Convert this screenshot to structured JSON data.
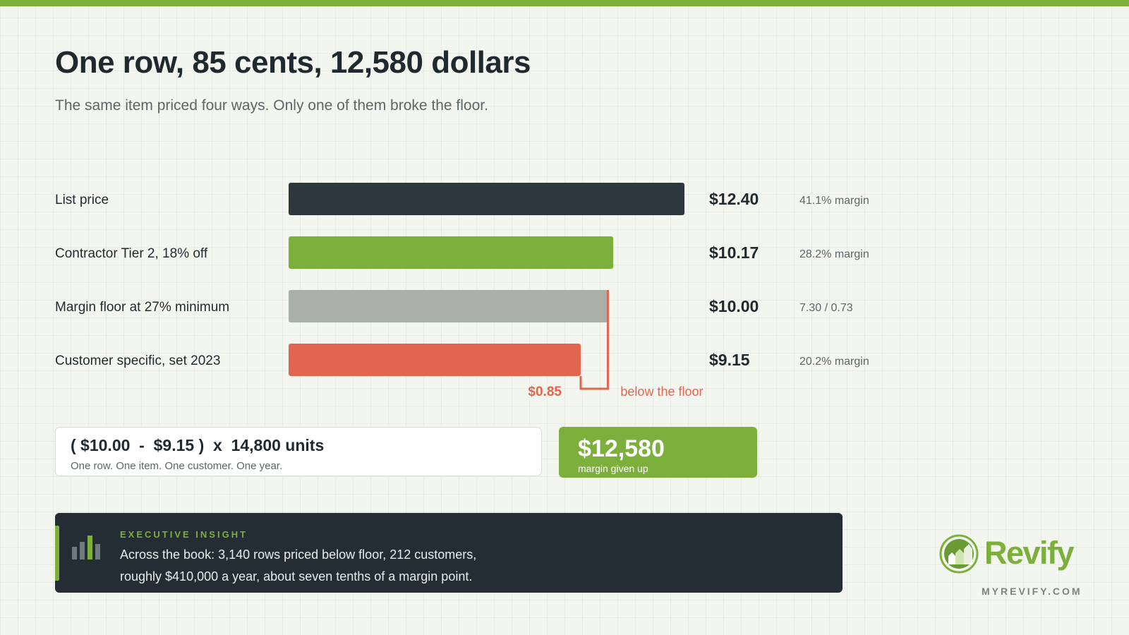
{
  "header": {
    "title": "One row, 85 cents, 12,580 dollars",
    "subtitle": "The same item priced four ways. Only one of them broke the floor."
  },
  "colors": {
    "accent": "#7daf3c",
    "dark": "#2f383e",
    "neutral": "#a8b0a8",
    "alert": "#e2654f",
    "panel": "#232d33"
  },
  "chart_data": {
    "type": "bar",
    "orientation": "horizontal",
    "categories": [
      "List price",
      "Contractor Tier 2, 18% off",
      "Margin floor at 27% minimum",
      "Customer specific, set 2023"
    ],
    "values": [
      12.4,
      10.17,
      10.0,
      9.15
    ],
    "value_labels": [
      "$12.40",
      "$10.17",
      "$10.00",
      "$9.15"
    ],
    "notes": [
      "41.1% margin",
      "28.2% margin",
      "7.30 / 0.73",
      "20.2% margin"
    ],
    "bar_colors": [
      "#2f383e",
      "#7daf3c",
      "#a8b0a8",
      "#e2654f"
    ],
    "xlim": [
      0,
      12.4
    ],
    "floor_value": 10.0,
    "gap": {
      "value": 0.85,
      "label": "$0.85",
      "caption": "below the floor"
    }
  },
  "formula": {
    "expression": "( $10.00  -  $9.15 )  x  14,800 units",
    "caption": "One row. One item. One customer. One year."
  },
  "result": {
    "value": "$12,580",
    "label": "margin given up"
  },
  "insight": {
    "eyebrow": "EXECUTIVE INSIGHT",
    "line1": "Across the book: 3,140 rows priced below floor, 212 customers,",
    "line2": "roughly $410,000 a year, about seven tenths of a margin point.",
    "icon": "bar-chart-icon"
  },
  "brand": {
    "name": "Revify",
    "url": "MYREVIFY.COM",
    "icon": "revify-logo-icon"
  }
}
